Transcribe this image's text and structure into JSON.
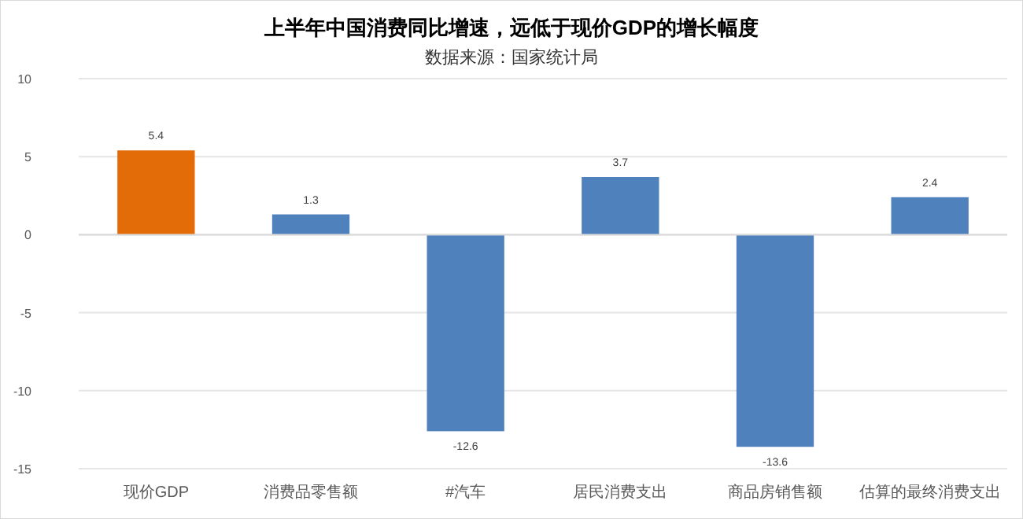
{
  "chart_data": {
    "type": "bar",
    "title": "上半年中国消费同比增速，远低于现价GDP的增长幅度",
    "subtitle": "数据来源：国家统计局",
    "categories": [
      "现价GDP",
      "消费品零售额",
      "#汽车",
      "居民消费支出",
      "商品房销售额",
      "估算的最终消费支出"
    ],
    "values": [
      5.4,
      1.3,
      -12.6,
      3.7,
      -13.6,
      2.4
    ],
    "colors": [
      "#e36c09",
      "#4f81bd",
      "#4f81bd",
      "#4f81bd",
      "#4f81bd",
      "#4f81bd"
    ],
    "ylim": [
      -15,
      10
    ],
    "yticks": [
      -15,
      -10,
      -5,
      0,
      5,
      10
    ],
    "grid": "y",
    "data_labels": true
  }
}
